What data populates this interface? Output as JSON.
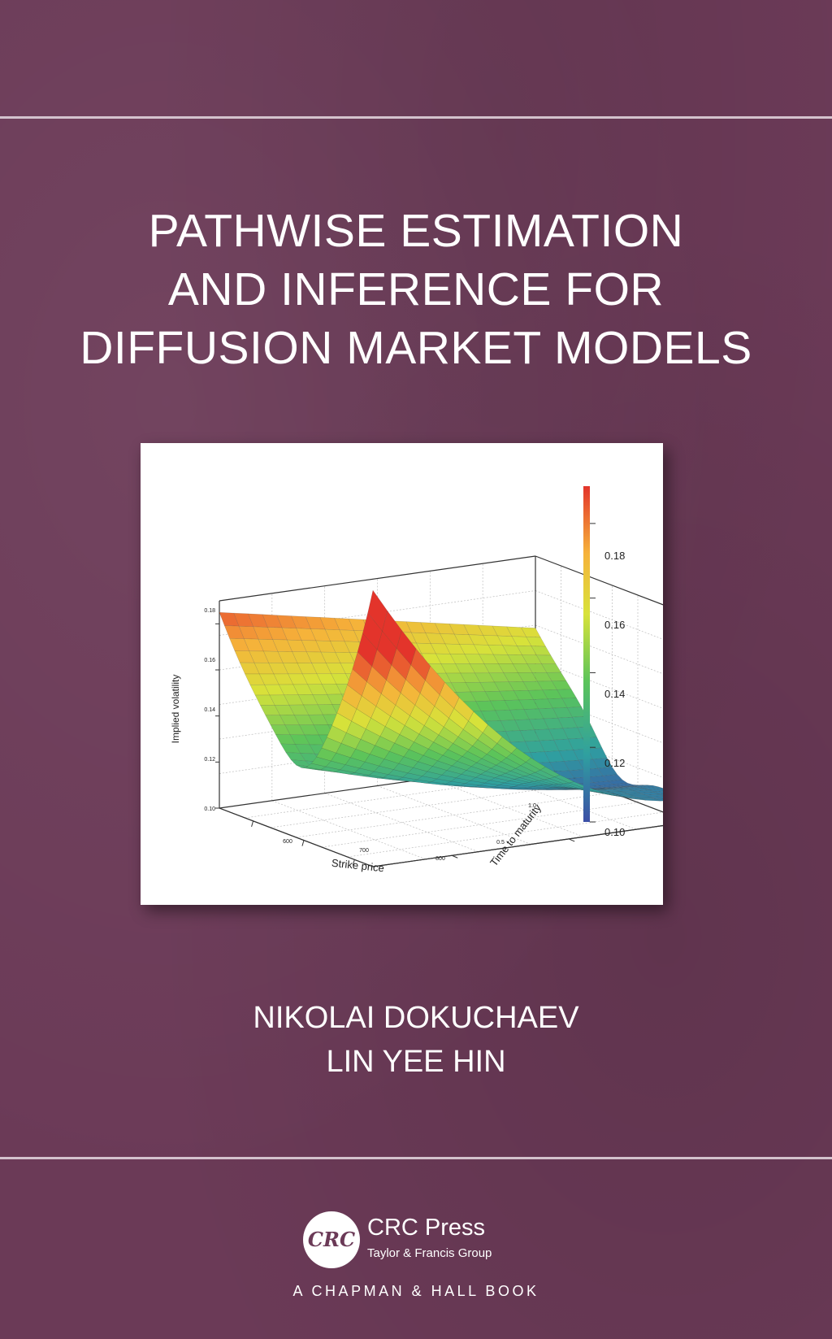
{
  "title_lines": [
    "PATHWISE ESTIMATION",
    "AND INFERENCE FOR",
    "DIFFUSION MARKET MODELS"
  ],
  "authors": [
    "NIKOLAI DOKUCHAEV",
    "LIN YEE HIN"
  ],
  "publisher": {
    "logo_text": "CRC",
    "name": "CRC Press",
    "group": "Taylor & Francis Group",
    "imprint": "A CHAPMAN & HALL BOOK"
  },
  "colors": {
    "background": "#6b3a57",
    "text": "#ffffff"
  },
  "chart_data": {
    "type": "surface",
    "xlabel": "Strike price",
    "ylabel": "Time to maturity",
    "zlabel": "Implied volatility",
    "x_ticks": [
      "600",
      "700",
      "800"
    ],
    "y_ticks": [
      "0.5",
      "1.0"
    ],
    "z_ticks": [
      "0.10",
      "0.12",
      "0.14",
      "0.16",
      "0.18"
    ],
    "colorbar_ticks": [
      "0.10",
      "0.12",
      "0.14",
      "0.16",
      "0.18"
    ],
    "zlim": [
      0.1,
      0.19
    ],
    "colormap": [
      "#3b4fa6",
      "#2fa0a0",
      "#5cc45a",
      "#d8e23a",
      "#f6b23a",
      "#e3342b"
    ]
  }
}
